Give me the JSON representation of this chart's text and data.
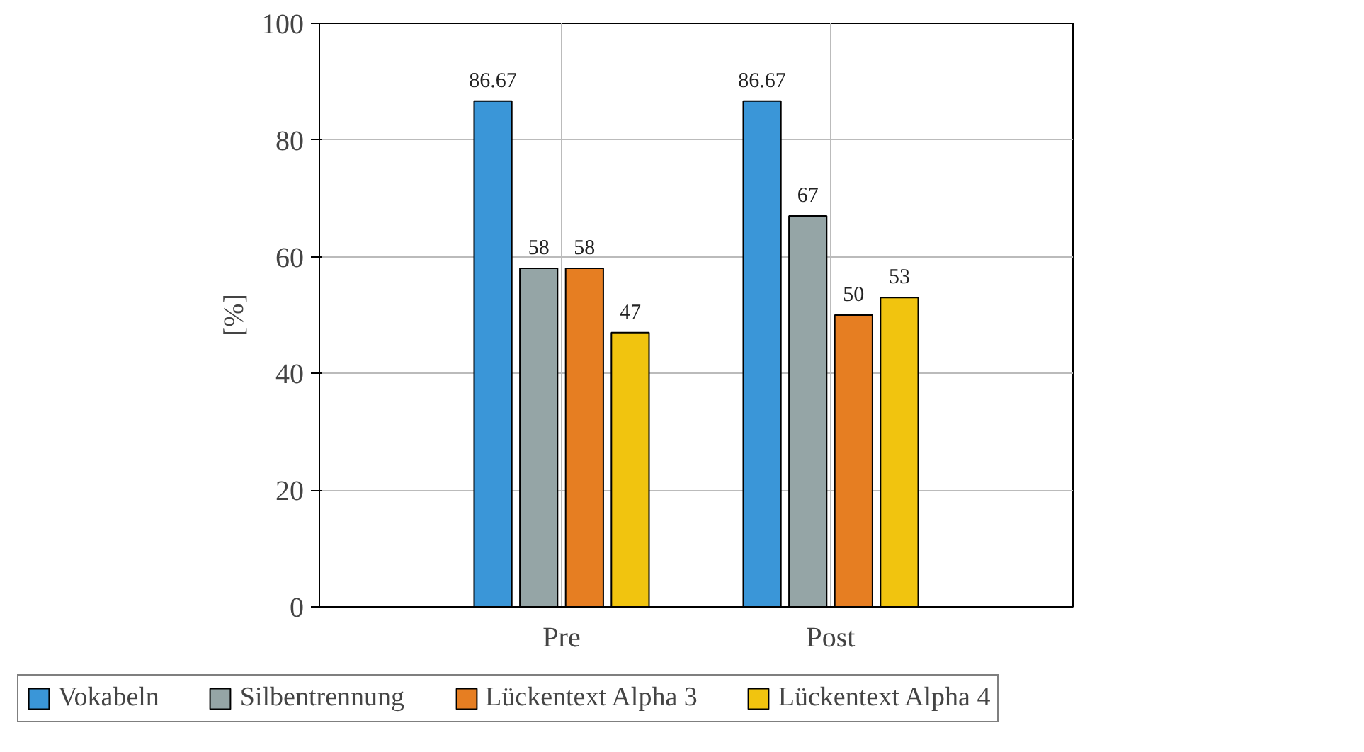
{
  "chart_data": {
    "type": "bar",
    "ylabel": "[%]",
    "categories": [
      "Pre",
      "Post"
    ],
    "series": [
      {
        "name": "Vokabeln",
        "color": "#3a96d8",
        "values": [
          86.67,
          86.67
        ]
      },
      {
        "name": "Silbentrennung",
        "color": "#95a5a6",
        "values": [
          58,
          67
        ]
      },
      {
        "name": "Lückentext Alpha 3",
        "color": "#e67e22",
        "values": [
          58,
          50
        ]
      },
      {
        "name": "Lückentext Alpha 4",
        "color": "#f1c40f",
        "values": [
          47,
          53
        ]
      }
    ],
    "ylim": [
      0,
      100
    ],
    "yticks": [
      0,
      20,
      40,
      60,
      80,
      100
    ],
    "grid": true,
    "legend": "bottom",
    "data_labels": true
  }
}
